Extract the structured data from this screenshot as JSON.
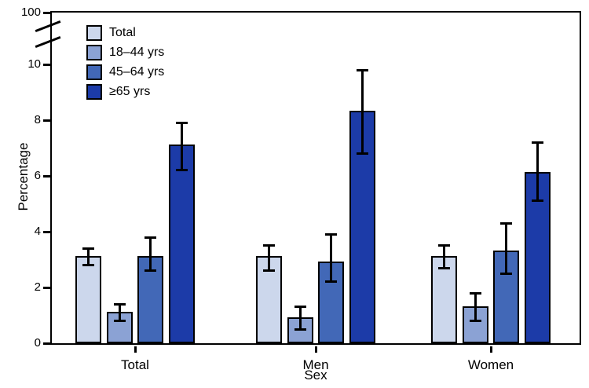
{
  "chart_data": {
    "type": "bar",
    "title": "",
    "xlabel": "Sex",
    "ylabel": "Percentage",
    "categories": [
      "Total",
      "Men",
      "Women"
    ],
    "y_axis": {
      "ticks": [
        0,
        2,
        4,
        6,
        8,
        10
      ],
      "broken_axis_top_label": "100",
      "axis_break": true,
      "display_range": [
        0,
        11.9
      ]
    },
    "grid": false,
    "legend_position": "top-left-inside",
    "series": [
      {
        "name": "Total",
        "color": "#ccd7ec",
        "values": [
          3.1,
          3.1,
          3.1
        ],
        "ci_low": [
          2.8,
          2.6,
          2.7
        ],
        "ci_high": [
          3.4,
          3.5,
          3.5
        ]
      },
      {
        "name": "18–44 yrs",
        "color": "#8ba2d4",
        "values": [
          1.1,
          0.9,
          1.3
        ],
        "ci_low": [
          0.8,
          0.5,
          0.8
        ],
        "ci_high": [
          1.4,
          1.3,
          1.8
        ]
      },
      {
        "name": "45–64 yrs",
        "color": "#4268b7",
        "values": [
          3.1,
          2.9,
          3.3
        ],
        "ci_low": [
          2.6,
          2.2,
          2.5
        ],
        "ci_high": [
          3.8,
          3.9,
          4.3
        ]
      },
      {
        "name": "≥65 yrs",
        "color": "#1c3ba8",
        "values": [
          7.1,
          8.3,
          6.1
        ],
        "ci_low": [
          6.2,
          6.8,
          5.1
        ],
        "ci_high": [
          7.9,
          9.8,
          7.2
        ]
      }
    ]
  }
}
